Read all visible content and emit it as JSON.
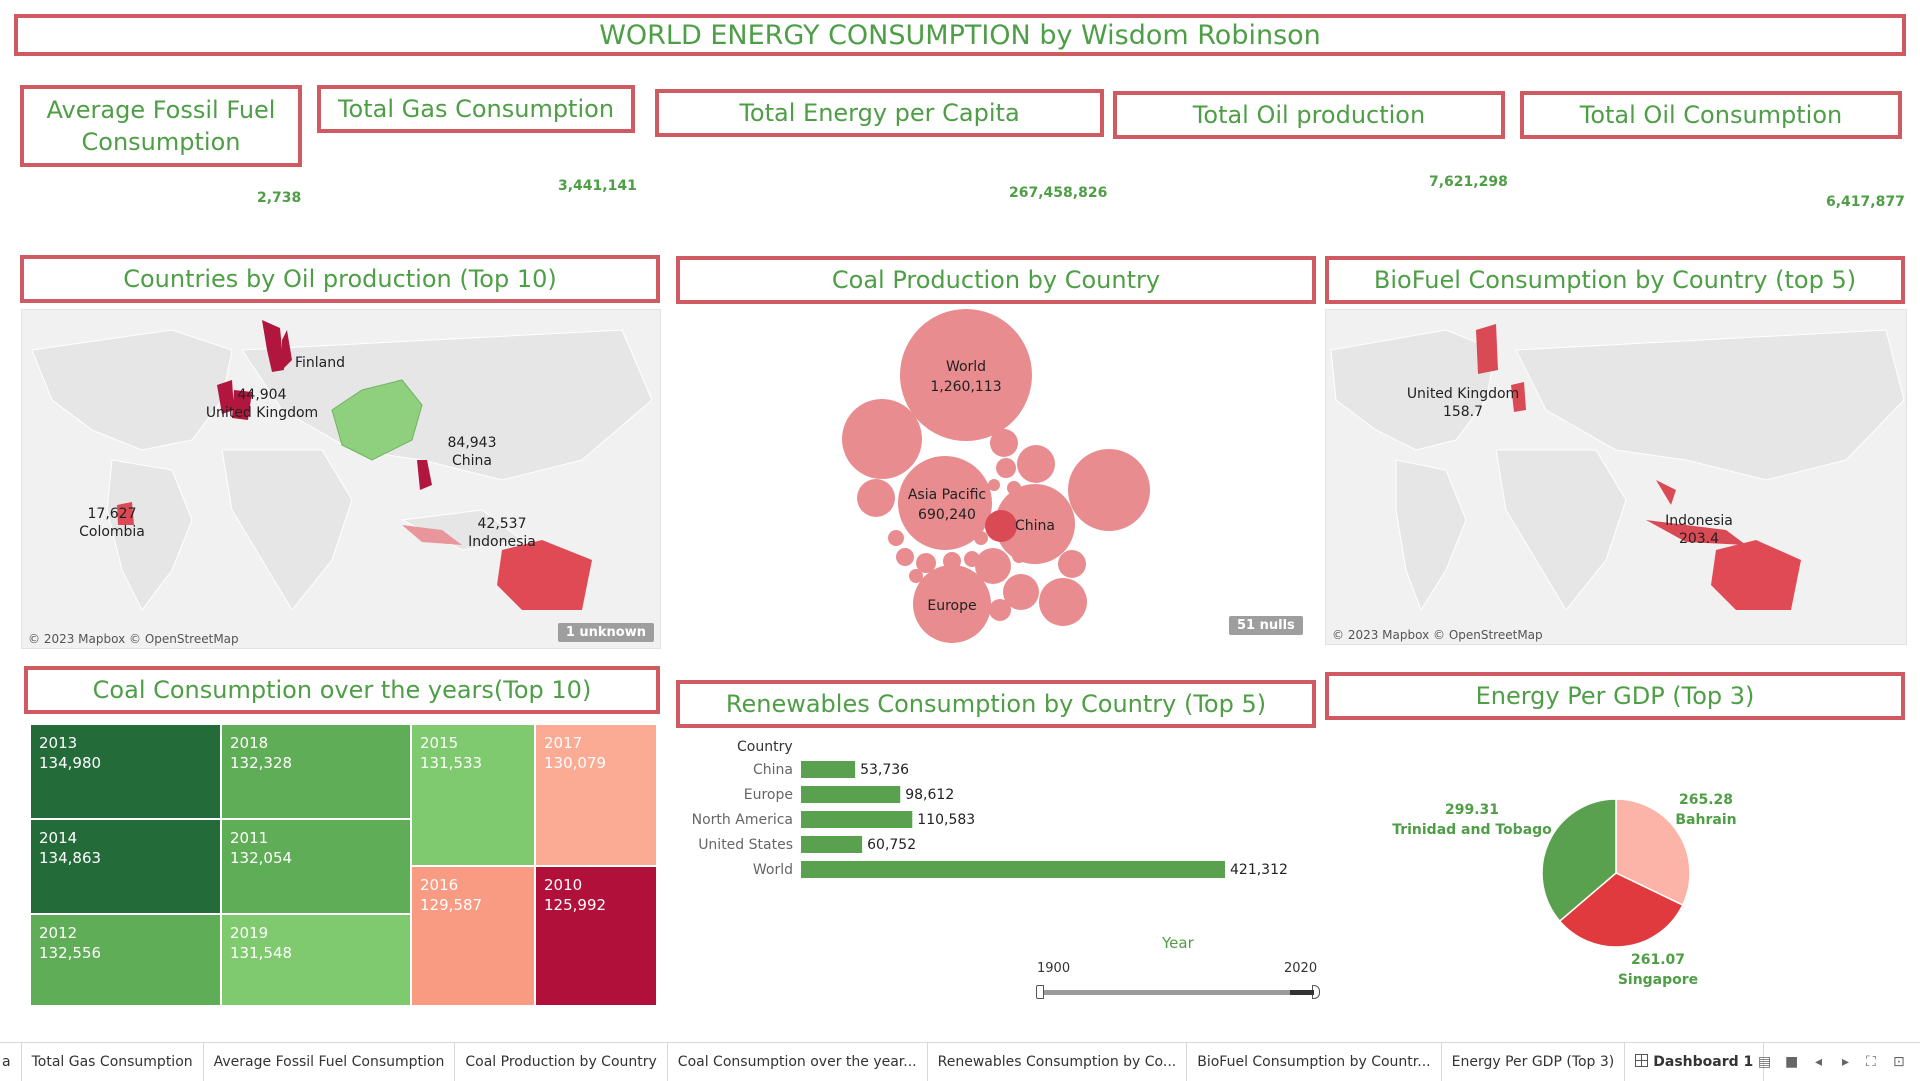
{
  "dashboard": {
    "title": "WORLD ENERGY CONSUMPTION by Wisdom Robinson"
  },
  "kpis": [
    {
      "label": "Average Fossil Fuel Consumption",
      "line1": "Average Fossil Fuel",
      "line2": "Consumption",
      "value": "2,738"
    },
    {
      "label": "Total Gas Consumption",
      "value": "3,441,141"
    },
    {
      "label": "Total Energy per Capita",
      "value": "267,458,826"
    },
    {
      "label": "Total Oil production",
      "value": "7,621,298"
    },
    {
      "label": "Total Oil Consumption",
      "value": "6,417,877"
    }
  ],
  "oil_map": {
    "title": "Countries by Oil production (Top 10)",
    "credit": "© 2023 Mapbox © OpenStreetMap",
    "badge": "1 unknown",
    "labels": [
      {
        "text": "Finland"
      },
      {
        "text": "44,904"
      },
      {
        "text": "United Kingdom"
      },
      {
        "text": "84,943"
      },
      {
        "text": "China"
      },
      {
        "text": "17,627"
      },
      {
        "text": "Colombia"
      },
      {
        "text": "42,537"
      },
      {
        "text": "Indonesia"
      }
    ]
  },
  "coal_bubbles": {
    "title": "Coal Production by Country",
    "badge": "51 nulls",
    "labels": {
      "world_name": "World",
      "world_value": "1,260,113",
      "asia_name": "Asia Pacific",
      "asia_value": "690,240",
      "china_name": "China",
      "europe_name": "Europe"
    }
  },
  "biofuel_map": {
    "title": "BioFuel Consumption by Country (top 5)",
    "credit": "© 2023 Mapbox © OpenStreetMap",
    "labels": [
      {
        "text": "United Kingdom"
      },
      {
        "text": "158.7"
      },
      {
        "text": "Indonesia"
      },
      {
        "text": "203.4"
      }
    ]
  },
  "coal_treemap": {
    "title": "Coal Consumption over the years(Top 10)",
    "cells": [
      {
        "year": "2013",
        "value": "134,980"
      },
      {
        "year": "2014",
        "value": "134,863"
      },
      {
        "year": "2012",
        "value": "132,556"
      },
      {
        "year": "2018",
        "value": "132,328"
      },
      {
        "year": "2011",
        "value": "132,054"
      },
      {
        "year": "2019",
        "value": "131,548"
      },
      {
        "year": "2015",
        "value": "131,533"
      },
      {
        "year": "2016",
        "value": "129,587"
      },
      {
        "year": "2017",
        "value": "130,079"
      },
      {
        "year": "2010",
        "value": "125,992"
      }
    ]
  },
  "renewables": {
    "title": "Renewables Consumption by Country (Top 5)",
    "axis_header": "Country",
    "slider_label": "Year",
    "slider_min": "1900",
    "slider_max": "2020"
  },
  "energy_gdp": {
    "title": "Energy Per GDP (Top 3)"
  },
  "tabs": [
    {
      "label": "a"
    },
    {
      "label": "Total Gas Consumption"
    },
    {
      "label": "Average Fossil Fuel Consumption"
    },
    {
      "label": "Coal Production by Country"
    },
    {
      "label": "Coal Consumption over the year..."
    },
    {
      "label": "Renewables Consumption by Co..."
    },
    {
      "label": "BioFuel Consumption by Countr..."
    },
    {
      "label": "Energy Per GDP (Top 3)"
    },
    {
      "label": "Dashboard 1"
    }
  ],
  "colors": {
    "border": "#d05a62",
    "title_green": "#4e9e46",
    "bar_green": "#59a14f",
    "dark_green": "#246b3a",
    "mid_green": "#5fad56",
    "light_green": "#7fca6e",
    "salmon": "#f99b82",
    "light_salmon": "#fbaa94",
    "crimson": "#b0103a",
    "bubble": "#e88c8f"
  },
  "chart_data": [
    {
      "type": "bar",
      "title": "Renewables Consumption by Country (Top 5)",
      "ylabel": "Country",
      "categories": [
        "China",
        "Europe",
        "North America",
        "United States",
        "World"
      ],
      "values": [
        53736,
        98612,
        110583,
        60752,
        421312
      ],
      "value_labels": [
        "53,736",
        "98,612",
        "110,583",
        "60,752",
        "421,312"
      ],
      "xlim": [
        0,
        421312
      ]
    },
    {
      "type": "pie",
      "title": "Energy Per GDP (Top 3)",
      "categories": [
        "Bahrain",
        "Singapore",
        "Trinidad and Tobago"
      ],
      "values": [
        265.28,
        261.07,
        299.31
      ],
      "value_labels": [
        "265.28",
        "261.07",
        "299.31"
      ],
      "colors": [
        "#fbb4a7",
        "#e0393e",
        "#59a14f"
      ]
    },
    {
      "type": "scatter",
      "title": "Coal Production by Country",
      "series": [
        {
          "name": "World",
          "values": [
            1260113
          ]
        },
        {
          "name": "Asia Pacific",
          "values": [
            690240
          ]
        }
      ]
    }
  ]
}
